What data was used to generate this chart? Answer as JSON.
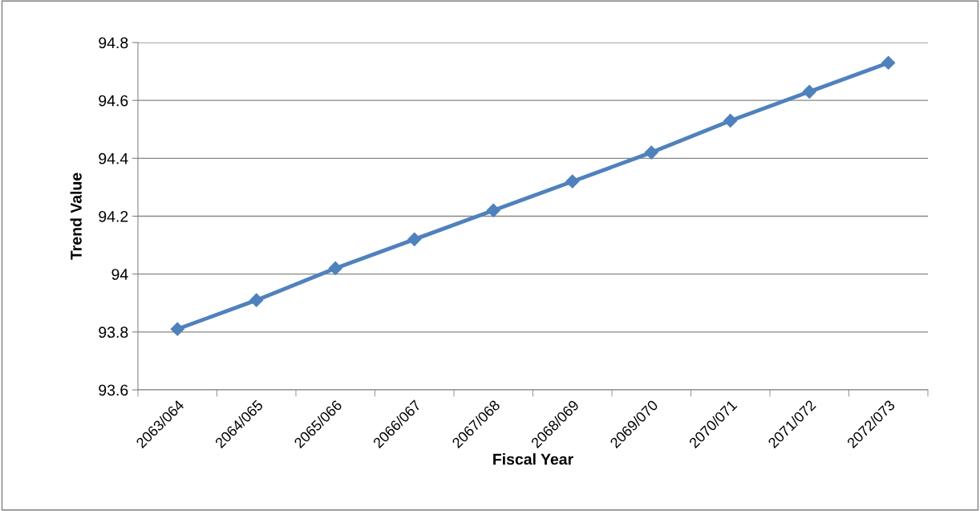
{
  "chart_data": {
    "type": "line",
    "xlabel": "Fiscal Year",
    "ylabel": "Trend Value",
    "categories": [
      "2063/064",
      "2064/065",
      "2065/066",
      "2066/067",
      "2067/068",
      "2068/069",
      "2069/070",
      "2070/071",
      "2071/072",
      "2072/073"
    ],
    "series": [
      {
        "color": "#4f81bd",
        "values": [
          93.81,
          93.91,
          94.02,
          94.12,
          94.22,
          94.32,
          94.42,
          94.53,
          94.63,
          94.73
        ]
      }
    ],
    "ylim": [
      93.6,
      94.8
    ],
    "yticks": [
      93.6,
      93.8,
      94,
      94.2,
      94.4,
      94.6,
      94.8
    ],
    "grid": "y",
    "marker": "diamond",
    "line_style": "solid",
    "legend": false
  }
}
